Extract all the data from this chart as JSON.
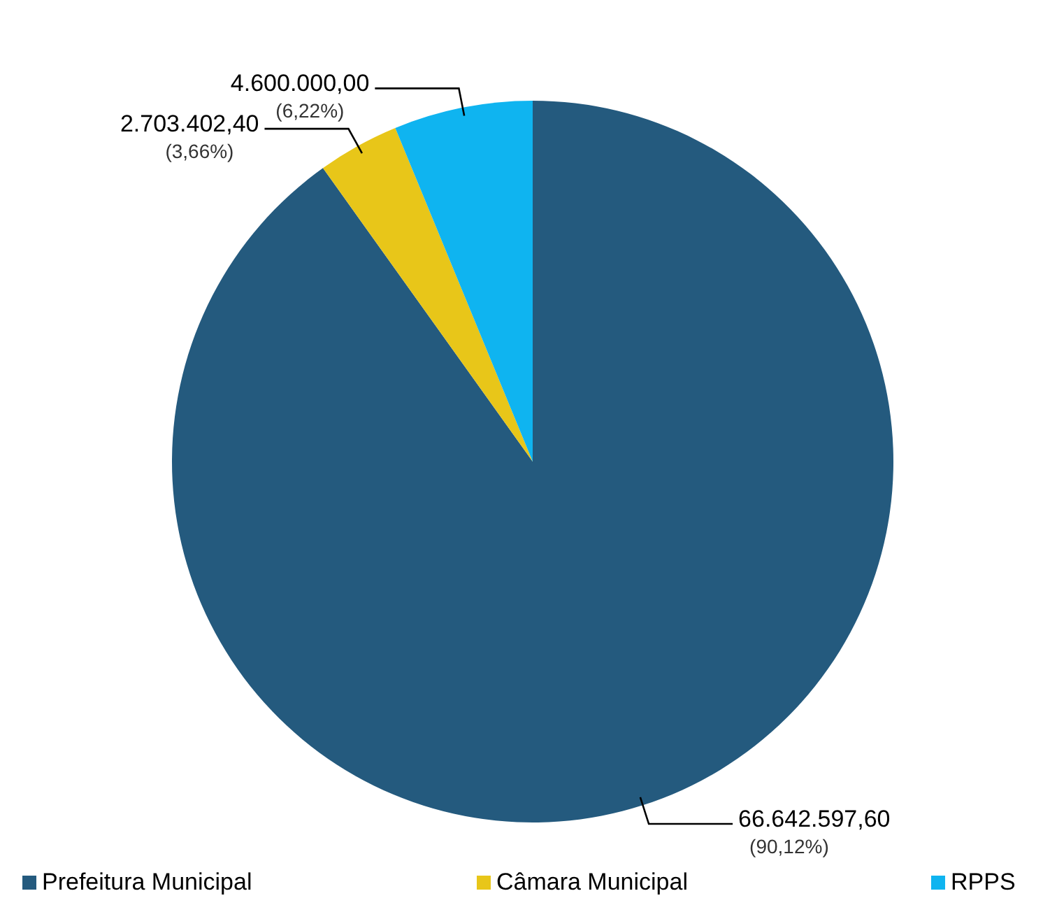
{
  "chart_data": {
    "type": "pie",
    "categories": [
      "Prefeitura Municipal",
      "Câmara Municipal",
      "RPPS"
    ],
    "values": [
      66642597.6,
      2703402.4,
      4600000.0
    ],
    "colors": [
      "#245a7e",
      "#e8c619",
      "#0fb4f0"
    ],
    "value_labels": [
      "66.642.597,60\n(90,12%)",
      "2.703.402,40\n(3,66%)",
      "4.600.000,00\n(6,22%)"
    ],
    "legend": "bottom"
  }
}
